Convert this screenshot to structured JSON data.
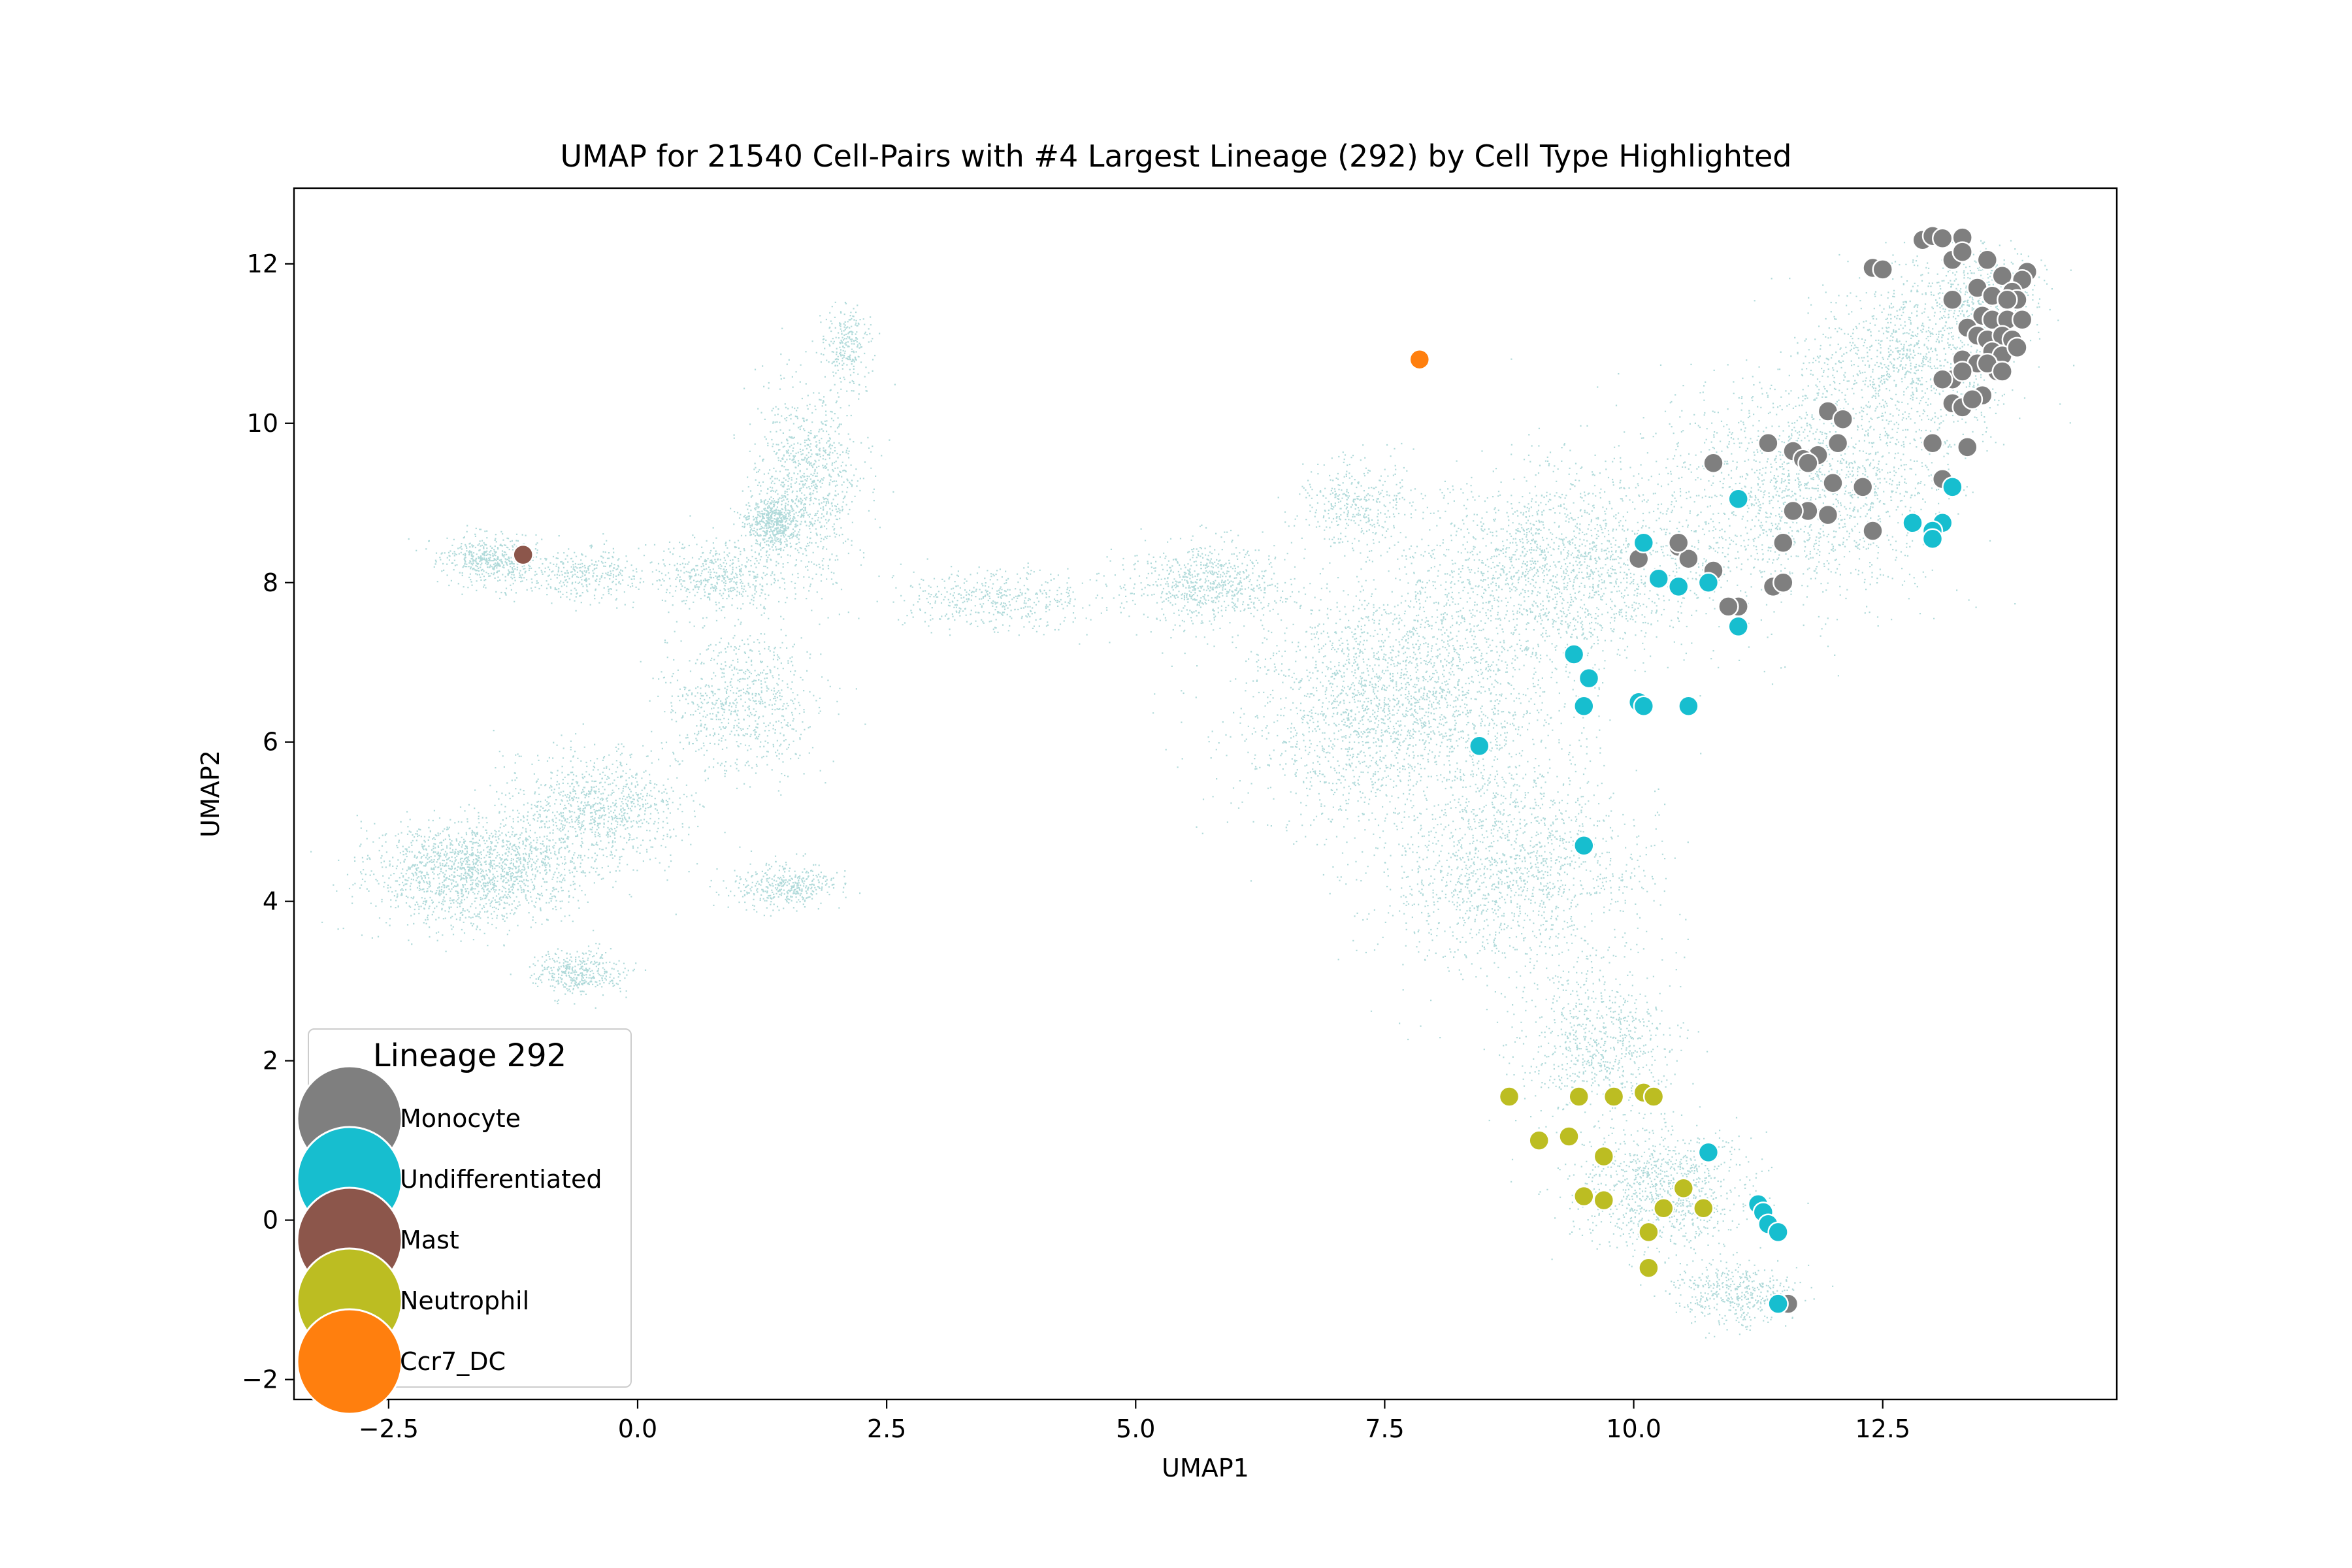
{
  "chart_data": {
    "type": "scatter",
    "title": "UMAP for 21540 Cell-Pairs with #4 Largest Lineage (292) by Cell Type Highlighted",
    "xlabel": "UMAP1",
    "ylabel": "UMAP2",
    "xlim": [
      -3.45,
      14.85
    ],
    "ylim": [
      -2.25,
      12.95
    ],
    "xticks": [
      -2.5,
      0.0,
      2.5,
      5.0,
      7.5,
      10.0,
      12.5
    ],
    "xtick_labels": [
      "−2.5",
      "0.0",
      "2.5",
      "5.0",
      "7.5",
      "10.0",
      "12.5"
    ],
    "yticks": [
      -2,
      0,
      2,
      4,
      6,
      8,
      10,
      12
    ],
    "ytick_labels": [
      "−2",
      "0",
      "2",
      "4",
      "6",
      "8",
      "10",
      "12"
    ],
    "grid": false,
    "background_color": "#b0dada",
    "background_regions": [
      {
        "x": 2.1,
        "y": 11.0,
        "sx": 0.22,
        "sy": 0.45,
        "w": 0.012
      },
      {
        "x": 1.7,
        "y": 9.3,
        "sx": 0.5,
        "sy": 1.1,
        "w": 0.05
      },
      {
        "x": 1.35,
        "y": 8.75,
        "sx": 0.28,
        "sy": 0.3,
        "w": 0.03
      },
      {
        "x": 0.8,
        "y": 8.1,
        "sx": 0.6,
        "sy": 0.4,
        "w": 0.025
      },
      {
        "x": -1.5,
        "y": 8.3,
        "sx": 0.4,
        "sy": 0.3,
        "w": 0.025
      },
      {
        "x": -0.6,
        "y": 8.1,
        "sx": 0.7,
        "sy": 0.3,
        "w": 0.02
      },
      {
        "x": 1.0,
        "y": 6.5,
        "sx": 0.7,
        "sy": 0.8,
        "w": 0.04
      },
      {
        "x": -0.4,
        "y": 5.2,
        "sx": 0.8,
        "sy": 0.6,
        "w": 0.05
      },
      {
        "x": -1.6,
        "y": 4.4,
        "sx": 1.0,
        "sy": 0.6,
        "w": 0.09
      },
      {
        "x": -0.6,
        "y": 3.1,
        "sx": 0.4,
        "sy": 0.25,
        "w": 0.02
      },
      {
        "x": 1.5,
        "y": 4.2,
        "sx": 0.5,
        "sy": 0.25,
        "w": 0.02
      },
      {
        "x": 3.6,
        "y": 7.8,
        "sx": 0.9,
        "sy": 0.35,
        "w": 0.025
      },
      {
        "x": 5.7,
        "y": 8.0,
        "sx": 0.7,
        "sy": 0.45,
        "w": 0.04
      },
      {
        "x": 7.2,
        "y": 9.0,
        "sx": 0.5,
        "sy": 0.5,
        "w": 0.02
      },
      {
        "x": 7.6,
        "y": 6.5,
        "sx": 1.4,
        "sy": 1.4,
        "w": 0.14
      },
      {
        "x": 9.3,
        "y": 8.2,
        "sx": 1.4,
        "sy": 1.1,
        "w": 0.1
      },
      {
        "x": 8.8,
        "y": 4.4,
        "sx": 1.2,
        "sy": 1.2,
        "w": 0.08
      },
      {
        "x": 9.6,
        "y": 2.2,
        "sx": 0.7,
        "sy": 0.9,
        "w": 0.04
      },
      {
        "x": 10.3,
        "y": 0.4,
        "sx": 0.8,
        "sy": 0.7,
        "w": 0.05
      },
      {
        "x": 11.0,
        "y": -0.9,
        "sx": 0.55,
        "sy": 0.35,
        "w": 0.025
      },
      {
        "x": 11.7,
        "y": 9.2,
        "sx": 1.3,
        "sy": 1.3,
        "w": 0.09
      },
      {
        "x": 12.8,
        "y": 10.8,
        "sx": 0.9,
        "sy": 1.0,
        "w": 0.06
      },
      {
        "x": 13.5,
        "y": 11.6,
        "sx": 0.5,
        "sy": 0.5,
        "w": 0.025
      }
    ],
    "series": [
      {
        "name": "Monocyte",
        "color": "#7f7f7f",
        "points": [
          [
            12.9,
            12.3
          ],
          [
            13.0,
            12.35
          ],
          [
            13.1,
            12.32
          ],
          [
            13.3,
            12.33
          ],
          [
            13.2,
            12.05
          ],
          [
            13.3,
            12.15
          ],
          [
            13.55,
            12.05
          ],
          [
            13.7,
            11.85
          ],
          [
            13.95,
            11.9
          ],
          [
            13.9,
            11.8
          ],
          [
            12.4,
            11.95
          ],
          [
            12.5,
            11.93
          ],
          [
            13.2,
            11.55
          ],
          [
            13.45,
            11.7
          ],
          [
            13.6,
            11.6
          ],
          [
            13.8,
            11.65
          ],
          [
            13.85,
            11.55
          ],
          [
            13.75,
            11.55
          ],
          [
            13.5,
            11.35
          ],
          [
            13.6,
            11.3
          ],
          [
            13.75,
            11.3
          ],
          [
            13.9,
            11.3
          ],
          [
            13.35,
            11.2
          ],
          [
            13.45,
            11.1
          ],
          [
            13.55,
            11.05
          ],
          [
            13.7,
            11.1
          ],
          [
            13.8,
            11.05
          ],
          [
            13.2,
            10.55
          ],
          [
            13.3,
            10.8
          ],
          [
            13.45,
            10.75
          ],
          [
            13.6,
            10.9
          ],
          [
            13.7,
            10.85
          ],
          [
            13.85,
            10.95
          ],
          [
            13.65,
            10.65
          ],
          [
            13.55,
            10.75
          ],
          [
            13.7,
            10.65
          ],
          [
            13.3,
            10.65
          ],
          [
            13.1,
            10.55
          ],
          [
            13.2,
            10.25
          ],
          [
            13.3,
            10.2
          ],
          [
            13.5,
            10.35
          ],
          [
            13.4,
            10.3
          ],
          [
            11.95,
            10.15
          ],
          [
            12.1,
            10.05
          ],
          [
            12.05,
            9.75
          ],
          [
            11.35,
            9.75
          ],
          [
            11.6,
            9.65
          ],
          [
            11.85,
            9.6
          ],
          [
            11.7,
            9.55
          ],
          [
            11.75,
            9.5
          ],
          [
            12.3,
            9.2
          ],
          [
            12.0,
            9.25
          ],
          [
            11.95,
            8.85
          ],
          [
            11.75,
            8.9
          ],
          [
            11.6,
            8.9
          ],
          [
            12.4,
            8.65
          ],
          [
            13.0,
            9.75
          ],
          [
            13.35,
            9.7
          ],
          [
            13.1,
            9.3
          ],
          [
            10.8,
            9.5
          ],
          [
            10.45,
            8.45
          ],
          [
            10.05,
            8.3
          ],
          [
            10.55,
            8.3
          ],
          [
            10.8,
            8.15
          ],
          [
            11.5,
            8.5
          ],
          [
            11.4,
            7.95
          ],
          [
            11.5,
            8.0
          ],
          [
            11.05,
            7.7
          ],
          [
            10.95,
            7.7
          ],
          [
            10.45,
            8.5
          ],
          [
            11.55,
            -1.05
          ]
        ]
      },
      {
        "name": "Undifferentiated",
        "color": "#17becf",
        "points": [
          [
            11.05,
            9.05
          ],
          [
            13.2,
            9.2
          ],
          [
            12.8,
            8.75
          ],
          [
            13.1,
            8.75
          ],
          [
            13.0,
            8.65
          ],
          [
            13.0,
            8.55
          ],
          [
            10.1,
            8.5
          ],
          [
            10.25,
            8.05
          ],
          [
            10.45,
            7.95
          ],
          [
            10.75,
            8.0
          ],
          [
            11.05,
            7.45
          ],
          [
            9.4,
            7.1
          ],
          [
            9.55,
            6.8
          ],
          [
            9.5,
            6.45
          ],
          [
            10.05,
            6.5
          ],
          [
            10.1,
            6.45
          ],
          [
            10.55,
            6.45
          ],
          [
            8.45,
            5.95
          ],
          [
            9.5,
            4.7
          ],
          [
            10.75,
            0.85
          ],
          [
            11.25,
            0.2
          ],
          [
            11.3,
            0.1
          ],
          [
            11.35,
            -0.05
          ],
          [
            11.45,
            -0.15
          ],
          [
            11.45,
            -1.05
          ]
        ]
      },
      {
        "name": "Mast",
        "color": "#8c564b",
        "points": [
          [
            -1.15,
            8.35
          ]
        ]
      },
      {
        "name": "Neutrophil",
        "color": "#bcbd22",
        "points": [
          [
            8.75,
            1.55
          ],
          [
            9.45,
            1.55
          ],
          [
            9.8,
            1.55
          ],
          [
            10.1,
            1.6
          ],
          [
            10.2,
            1.55
          ],
          [
            9.05,
            1.0
          ],
          [
            9.35,
            1.05
          ],
          [
            9.7,
            0.8
          ],
          [
            9.5,
            0.3
          ],
          [
            9.7,
            0.25
          ],
          [
            10.5,
            0.4
          ],
          [
            10.3,
            0.15
          ],
          [
            10.7,
            0.15
          ],
          [
            10.15,
            -0.15
          ],
          [
            10.15,
            -0.6
          ]
        ]
      },
      {
        "name": "Ccr7_DC",
        "color": "#ff7f0e",
        "points": [
          [
            7.85,
            10.8
          ]
        ]
      }
    ],
    "legend": {
      "title": "Lineage 292",
      "placement": "lower-left",
      "entries": [
        "Monocyte",
        "Undifferentiated",
        "Mast",
        "Neutrophil",
        "Ccr7_DC"
      ]
    }
  }
}
